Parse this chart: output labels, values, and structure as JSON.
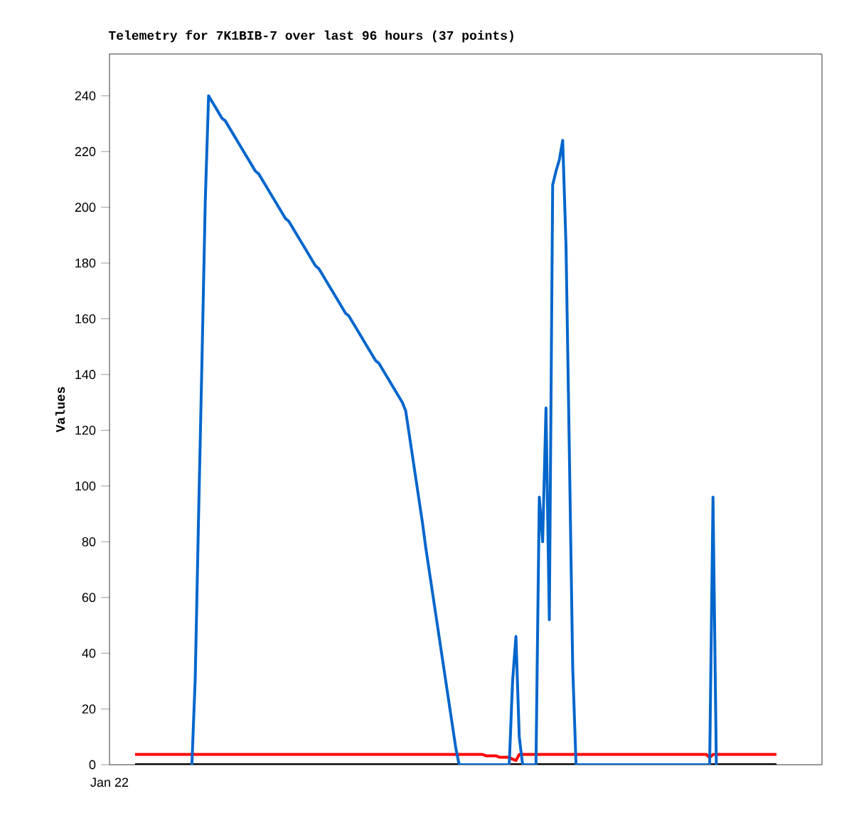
{
  "chart_data": {
    "type": "line",
    "title": "Telemetry for 7K1BIB-7 over last 96 hours (37 points)",
    "ylabel": "Values",
    "annotations": [
      "Jan 22"
    ],
    "categories": [
      null,
      null,
      null,
      null,
      null,
      null,
      null,
      null,
      null,
      null,
      null,
      null,
      null,
      null,
      null,
      null,
      null,
      null,
      null,
      null,
      null,
      null,
      null,
      null,
      null,
      null,
      null,
      null,
      null,
      null,
      null,
      null,
      null,
      null,
      null,
      null,
      null,
      null,
      null,
      null,
      null,
      null,
      null,
      null,
      null,
      null,
      null,
      null,
      null,
      null,
      null,
      null,
      null,
      null,
      null,
      null,
      null,
      null,
      null,
      null,
      null,
      null,
      null,
      null,
      null,
      null,
      null,
      null,
      null,
      null,
      null,
      null,
      null,
      null,
      null,
      null,
      null,
      null,
      null,
      null,
      null,
      null,
      null,
      null,
      null,
      null,
      null,
      null,
      null,
      null,
      null,
      null,
      null,
      null,
      null,
      null,
      null,
      null,
      null,
      null,
      null,
      null,
      null,
      null,
      null,
      null,
      null,
      null,
      null,
      null,
      null,
      null,
      null,
      null,
      null,
      null,
      null,
      null,
      null,
      null,
      null,
      null,
      null,
      null,
      null,
      null,
      null,
      null,
      null,
      null,
      null,
      null,
      null,
      null,
      null,
      null,
      null,
      null,
      null,
      null,
      null,
      null,
      null,
      null,
      null,
      null,
      null,
      null,
      null,
      null,
      null,
      null,
      null,
      null,
      null,
      null,
      null,
      null,
      null,
      null,
      null,
      null,
      null,
      null,
      null,
      null,
      null,
      null,
      null,
      null,
      null,
      null,
      null,
      null,
      null,
      null,
      null,
      null,
      null,
      null,
      null,
      null,
      null,
      null,
      null,
      null,
      null,
      null,
      null,
      null,
      null,
      null,
      null
    ],
    "ylim": [
      0,
      255
    ],
    "yticks": [
      0,
      20,
      40,
      60,
      80,
      100,
      120,
      140,
      160,
      180,
      200,
      220,
      240
    ],
    "tick_labels": "y",
    "grid": false,
    "marker": "none",
    "line_style": "solid",
    "series": [
      {
        "color": "#000000",
        "values": [
          0,
          0,
          0,
          0,
          0,
          0,
          0,
          0,
          0,
          0,
          0,
          0,
          0,
          0,
          0,
          0,
          0,
          0,
          0,
          0,
          0,
          0,
          0,
          0,
          0,
          0,
          0,
          0,
          0,
          0,
          0,
          0,
          0,
          0,
          0,
          0,
          0,
          0,
          0,
          0,
          0,
          0,
          0,
          0,
          0,
          0,
          0,
          0,
          0,
          0,
          0,
          0,
          0,
          0,
          0,
          0,
          0,
          0,
          0,
          0,
          0,
          0,
          0,
          0,
          0,
          0,
          0,
          0,
          0,
          0,
          0,
          0,
          0,
          0,
          0,
          0,
          0,
          0,
          0,
          0,
          0,
          0,
          0,
          0,
          0,
          0,
          0,
          0,
          0,
          0,
          0,
          0,
          0,
          0,
          0,
          0,
          0,
          0,
          0,
          0,
          0,
          0,
          0,
          0,
          0,
          0,
          0,
          0,
          0,
          0,
          0,
          0,
          0,
          0,
          0,
          0,
          0,
          0,
          0,
          0,
          0,
          0,
          0,
          0,
          0,
          0,
          0,
          0,
          0,
          0,
          0,
          0,
          0,
          0,
          0,
          0,
          0,
          0,
          0,
          0,
          0,
          0,
          0,
          0,
          0,
          0,
          0,
          0,
          0,
          0,
          0,
          0,
          0,
          0,
          0,
          0,
          0,
          0,
          0,
          0,
          0,
          0,
          0,
          0,
          0,
          0,
          0,
          0,
          0,
          0,
          0,
          0,
          0,
          0,
          0,
          0,
          0,
          0,
          0,
          0,
          0,
          0,
          0,
          0,
          0,
          0,
          0,
          0,
          0,
          0,
          0,
          0,
          0
        ]
      },
      {
        "color": "#ff0000",
        "values": [
          3.7,
          3.7,
          3.7,
          3.7,
          3.7,
          3.7,
          3.7,
          3.7,
          3.7,
          3.7,
          3.7,
          3.7,
          3.7,
          3.7,
          3.7,
          3.7,
          3.7,
          3.7,
          3.7,
          3.7,
          3.7,
          3.7,
          3.7,
          3.7,
          3.7,
          3.7,
          3.7,
          3.7,
          3.7,
          3.7,
          3.7,
          3.7,
          3.7,
          3.7,
          3.7,
          3.7,
          3.7,
          3.7,
          3.7,
          3.7,
          3.7,
          3.7,
          3.7,
          3.7,
          3.7,
          3.7,
          3.7,
          3.7,
          3.7,
          3.7,
          3.7,
          3.7,
          3.7,
          3.7,
          3.7,
          3.7,
          3.7,
          3.7,
          3.7,
          3.7,
          3.7,
          3.7,
          3.7,
          3.7,
          3.7,
          3.7,
          3.7,
          3.7,
          3.7,
          3.7,
          3.7,
          3.7,
          3.7,
          3.7,
          3.7,
          3.7,
          3.7,
          3.7,
          3.7,
          3.7,
          3.7,
          3.7,
          3.7,
          3.7,
          3.7,
          3.7,
          3.7,
          3.7,
          3.7,
          3.7,
          3.7,
          3.7,
          3.7,
          3.7,
          3.7,
          3.7,
          3.7,
          3.7,
          3.7,
          3.7,
          3.7,
          3.7,
          3.7,
          3.7,
          3.7,
          3.2,
          3.2,
          3.2,
          3.2,
          2.7,
          2.7,
          2.7,
          2.7,
          2,
          1.5,
          3.7,
          3.7,
          3.7,
          3.7,
          3.7,
          3.7,
          3.7,
          3.7,
          3.7,
          3.7,
          3.7,
          3.7,
          3.7,
          3.7,
          3.7,
          3.7,
          3.7,
          3.7,
          3.7,
          3.7,
          3.7,
          3.7,
          3.7,
          3.7,
          3.7,
          3.7,
          3.7,
          3.7,
          3.7,
          3.7,
          3.7,
          3.7,
          3.7,
          3.7,
          3.7,
          3.7,
          3.7,
          3.7,
          3.7,
          3.7,
          3.7,
          3.7,
          3.7,
          3.7,
          3.7,
          3.7,
          3.7,
          3.7,
          3.7,
          3.7,
          3.7,
          3.7,
          3.7,
          3.7,
          3.7,
          3.7,
          3.7,
          2.5,
          3.7,
          3.7,
          3.7,
          3.7,
          3.7,
          3.7,
          3.7,
          3.7,
          3.7,
          3.7,
          3.7,
          3.7,
          3.7,
          3.7,
          3.7,
          3.7,
          3.7,
          3.7,
          3.7,
          3.7
        ]
      },
      {
        "color": "#0066cc",
        "values": [
          null,
          null,
          null,
          null,
          null,
          null,
          null,
          null,
          null,
          null,
          null,
          null,
          null,
          null,
          null,
          null,
          null,
          0,
          31,
          89,
          144,
          202,
          240,
          238,
          236,
          234,
          232,
          231,
          229,
          227,
          225,
          223,
          221,
          219,
          217,
          215,
          213,
          212,
          210,
          208,
          206,
          204,
          202,
          200,
          198,
          196,
          195,
          193,
          191,
          189,
          187,
          185,
          183,
          181,
          179,
          178,
          176,
          174,
          172,
          170,
          168,
          166,
          164,
          162,
          161,
          159,
          157,
          155,
          153,
          151,
          149,
          147,
          145,
          144,
          142,
          140,
          138,
          136,
          134,
          132,
          130,
          127,
          119,
          111,
          103,
          95,
          87,
          78,
          70,
          62,
          54,
          46,
          38,
          30,
          22,
          14,
          6,
          0,
          0,
          0,
          0,
          0,
          0,
          0,
          0,
          0,
          0,
          0,
          0,
          0,
          0,
          0,
          0,
          30,
          46,
          10,
          0,
          0,
          0,
          0,
          0,
          96,
          80,
          128,
          52,
          208,
          213,
          217,
          224,
          186,
          112,
          35,
          0,
          0,
          0,
          0,
          0,
          0,
          0,
          0,
          0,
          0,
          0,
          0,
          0,
          0,
          0,
          0,
          0,
          0,
          0,
          0,
          0,
          0,
          0,
          0,
          0,
          0,
          0,
          0,
          0,
          0,
          0,
          0,
          0,
          0,
          0,
          0,
          0,
          0,
          0,
          0,
          0,
          96,
          0,
          null,
          null,
          null,
          null,
          null,
          null,
          null,
          null,
          null,
          null,
          null,
          null,
          null,
          null,
          null,
          null,
          null,
          null
        ]
      }
    ]
  }
}
